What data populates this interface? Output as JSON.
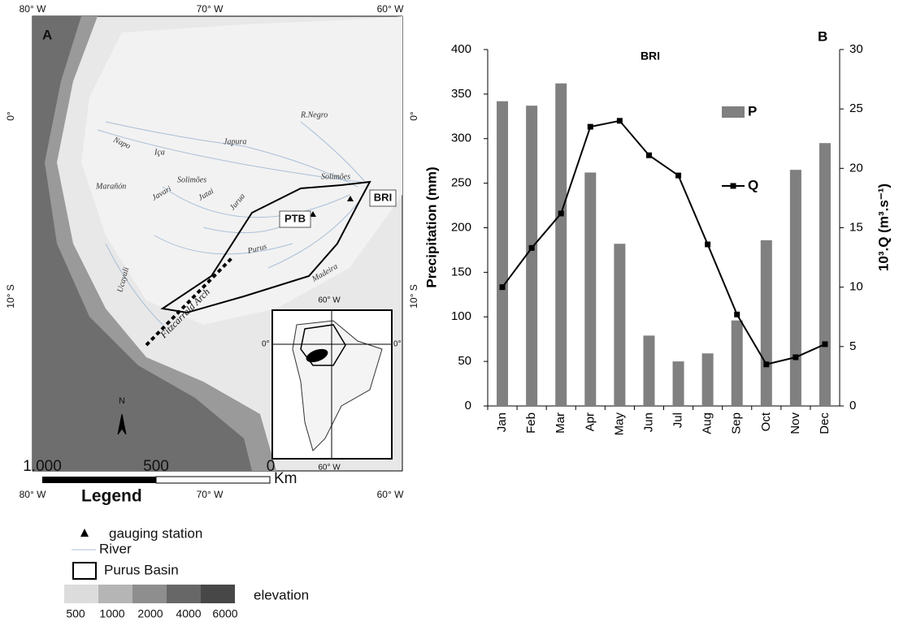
{
  "map": {
    "panel_label": "A",
    "lon_labels_top": [
      "80° W",
      "70° W",
      "60° W"
    ],
    "lon_labels_bottom": [
      "80° W",
      "70° W",
      "60° W"
    ],
    "lat_labels_left": [
      "0°",
      "10° S"
    ],
    "lat_labels_right": [
      "0°",
      "10° S"
    ],
    "rivers": [
      "R.Negro",
      "Napo",
      "Iça",
      "Japura",
      "Solimões",
      "Marañón",
      "Javari",
      "Solimões",
      "Jutai",
      "Jurua",
      "Purus",
      "Madeira",
      "Ucayali"
    ],
    "feature": "Fitzcarrald Arch",
    "stations": [
      "PTB",
      "BRI"
    ],
    "inset_labels": [
      "60° W",
      "0°",
      "0°",
      "60° W"
    ],
    "north": "N",
    "scale": [
      "1.000",
      "500",
      "0",
      "Km"
    ],
    "legend": {
      "title": "Legend",
      "gauging_station": "gauging station",
      "river": "River",
      "basin": "Purus Basin",
      "elevation": "elevation",
      "elevation_classes": [
        "500",
        "1000",
        "2000",
        "4000",
        "6000"
      ]
    }
  },
  "chart_data": {
    "type": "bar",
    "panel_label": "B",
    "title": "BRI",
    "categories": [
      "Jan",
      "Feb",
      "Mar",
      "Apr",
      "May",
      "Jun",
      "Jul",
      "Aug",
      "Sep",
      "Oct",
      "Nov",
      "Dec"
    ],
    "series": [
      {
        "name": "P",
        "color": "#808080",
        "type": "bar",
        "values": [
          342,
          337,
          362,
          262,
          182,
          79,
          50,
          59,
          96,
          186,
          265,
          295
        ]
      },
      {
        "name": "Q",
        "color": "#000000",
        "type": "line",
        "axis": "y2",
        "values": [
          10.0,
          13.3,
          16.2,
          23.5,
          24.0,
          21.1,
          19.4,
          13.6,
          7.7,
          3.5,
          4.1,
          5.2
        ]
      }
    ],
    "y_label": "Precipitation (mm)",
    "y2_label": "10³.Q (m³.s⁻¹)",
    "ylim": [
      0,
      400
    ],
    "yticks": [
      0,
      50,
      100,
      150,
      200,
      250,
      300,
      350,
      400
    ],
    "y2lim": [
      0,
      30
    ],
    "y2ticks": [
      0,
      5,
      10,
      15,
      20,
      25,
      30
    ],
    "grid": false
  }
}
